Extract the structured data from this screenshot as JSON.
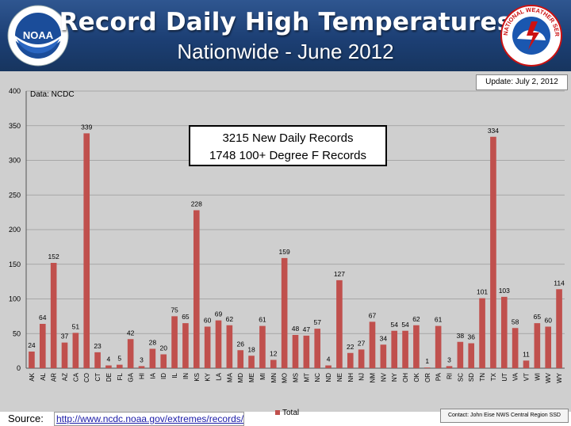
{
  "header": {
    "title": "Record Daily High Temperatures",
    "subtitle": "Nationwide - June 2012"
  },
  "logos": {
    "noaa_text": "NOAA",
    "nws_text": "NATIONAL WEATHER SERVICE"
  },
  "update": "Update: July 2, 2012",
  "data_source": "Data: NCDC",
  "records_box": {
    "line1": "3215 New Daily Records",
    "line2": "1748 100+ Degree F Records"
  },
  "legend": {
    "label": "Total"
  },
  "contact": "Contact: John Eise NWS Central Region SSD",
  "footer": {
    "source_label": "Source:",
    "source_url": "http://www.ncdc.noaa.gov/extremes/records/"
  },
  "colors": {
    "bar": "#c0504d",
    "plot_bg": "#cfcfcf",
    "header_bg": "#1f3f73"
  },
  "chart_data": {
    "type": "bar",
    "title": "Record Daily High Temperatures",
    "subtitle": "Nationwide - June 2012",
    "xlabel": "",
    "ylabel": "",
    "ylim": [
      0,
      400
    ],
    "yticks": [
      0,
      50,
      100,
      150,
      200,
      250,
      300,
      350,
      400
    ],
    "grid": true,
    "legend": "bottom",
    "categories": [
      "AK",
      "AL",
      "AR",
      "AZ",
      "CA",
      "CO",
      "CT",
      "DE",
      "FL",
      "GA",
      "HI",
      "IA",
      "ID",
      "IL",
      "IN",
      "KS",
      "KY",
      "LA",
      "MA",
      "MD",
      "ME",
      "MI",
      "MN",
      "MO",
      "MS",
      "MT",
      "NC",
      "ND",
      "NE",
      "NH",
      "NJ",
      "NM",
      "NV",
      "NY",
      "OH",
      "OK",
      "OR",
      "PA",
      "RI",
      "SC",
      "SD",
      "TN",
      "TX",
      "UT",
      "VA",
      "VT",
      "WI",
      "WV",
      "WY"
    ],
    "series": [
      {
        "name": "Total",
        "values": [
          24,
          64,
          152,
          37,
          51,
          339,
          23,
          4,
          5,
          42,
          3,
          28,
          20,
          75,
          65,
          228,
          60,
          69,
          62,
          26,
          18,
          61,
          12,
          159,
          48,
          47,
          57,
          4,
          127,
          22,
          27,
          67,
          34,
          54,
          54,
          62,
          1,
          61,
          3,
          38,
          36,
          101,
          334,
          103,
          58,
          11,
          65,
          60,
          114
        ]
      }
    ]
  }
}
